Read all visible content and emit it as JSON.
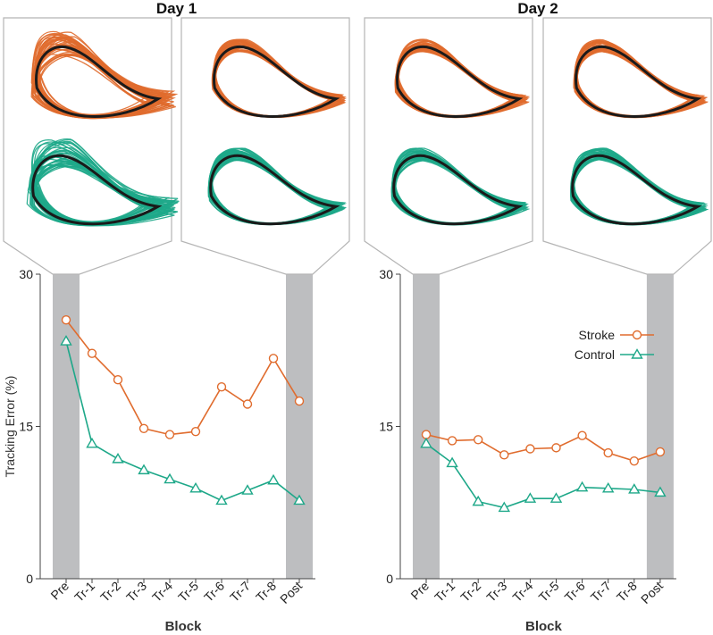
{
  "chart_data": {
    "type": "line",
    "panels": [
      {
        "title": "Day 1",
        "categories": [
          "Pre",
          "Tr-1",
          "Tr-2",
          "Tr-3",
          "Tr-4",
          "Tr-5",
          "Tr-6",
          "Tr-7",
          "Tr-8",
          "Post"
        ],
        "series": [
          {
            "name": "Stroke",
            "marker": "circle",
            "values": [
              25.5,
              22.2,
              19.6,
              14.8,
              14.2,
              14.5,
              18.9,
              17.2,
              21.7,
              17.5
            ]
          },
          {
            "name": "Control",
            "marker": "triangle",
            "values": [
              23.4,
              13.3,
              11.8,
              10.7,
              9.8,
              8.9,
              7.7,
              8.7,
              9.7,
              7.7
            ]
          }
        ],
        "highlighted_blocks": [
          "Pre",
          "Post"
        ],
        "insets": [
          {
            "block": "Pre",
            "groups": [
              "Stroke",
              "Control"
            ]
          },
          {
            "block": "Post",
            "groups": [
              "Stroke",
              "Control"
            ]
          }
        ]
      },
      {
        "title": "Day 2",
        "categories": [
          "Pre",
          "Tr-1",
          "Tr-2",
          "Tr-3",
          "Tr-4",
          "Tr-5",
          "Tr-6",
          "Tr-7",
          "Tr-8",
          "Post"
        ],
        "series": [
          {
            "name": "Stroke",
            "marker": "circle",
            "values": [
              14.2,
              13.6,
              13.7,
              12.2,
              12.8,
              12.9,
              14.1,
              12.4,
              11.6,
              12.5
            ]
          },
          {
            "name": "Control",
            "marker": "triangle",
            "values": [
              13.3,
              11.4,
              7.6,
              7.0,
              7.9,
              7.9,
              9.0,
              8.9,
              8.8,
              8.5
            ]
          }
        ],
        "highlighted_blocks": [
          "Pre",
          "Post"
        ],
        "insets": [
          {
            "block": "Pre",
            "groups": [
              "Stroke",
              "Control"
            ]
          },
          {
            "block": "Post",
            "groups": [
              "Stroke",
              "Control"
            ]
          }
        ]
      }
    ],
    "xlabel": "Block",
    "ylabel": "Tracking Error (%)",
    "ylim": [
      0,
      30
    ],
    "yticks": [
      0,
      15,
      30
    ],
    "legend": {
      "position": "right",
      "entries": [
        "Stroke",
        "Control"
      ]
    },
    "colors": {
      "Stroke": "#e06c2e",
      "Control": "#1ea889",
      "reference": "#1a1a1a",
      "highlight": "#bdbec0",
      "frame": "#b5b5b5"
    }
  }
}
